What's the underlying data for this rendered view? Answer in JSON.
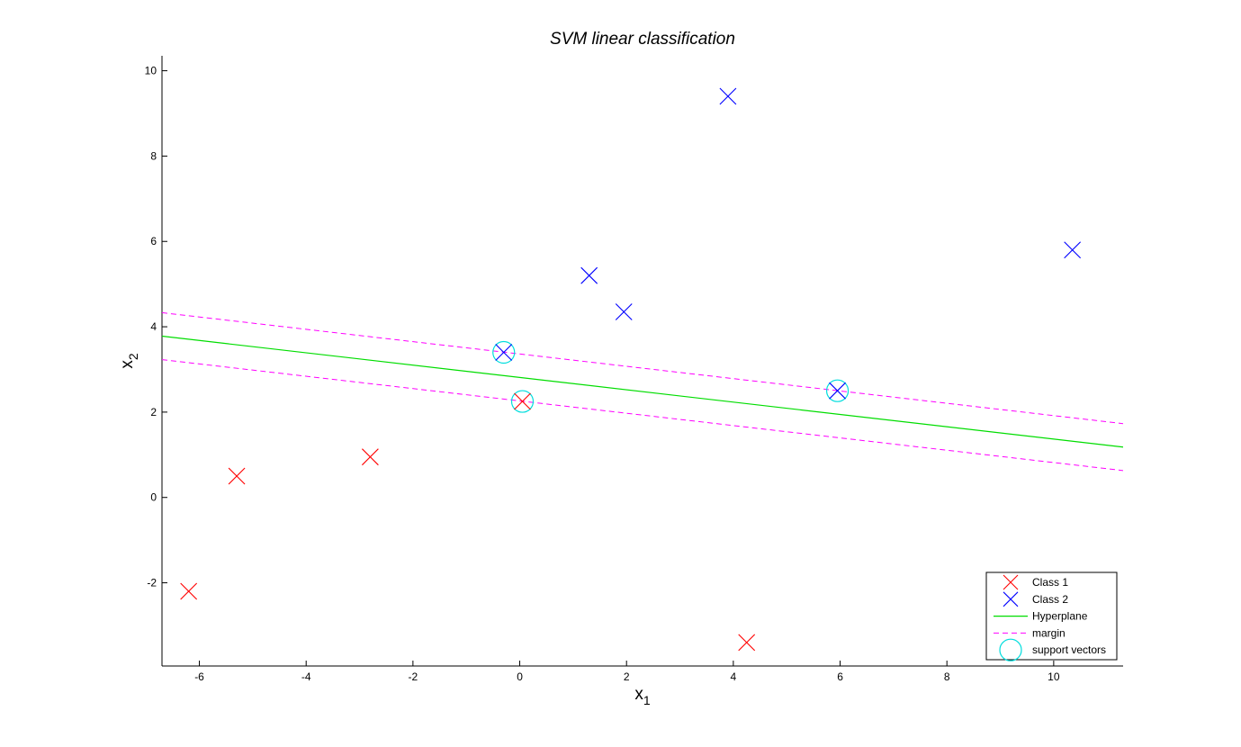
{
  "chart_data": {
    "type": "scatter",
    "title": "SVM linear classification",
    "xlabel": {
      "base": "x",
      "sub": "1"
    },
    "ylabel": {
      "base": "x",
      "sub": "2"
    },
    "xlim": [
      -6.7,
      11.3
    ],
    "ylim": [
      -3.95,
      10.35
    ],
    "xticks": [
      -6,
      -4,
      -2,
      0,
      2,
      4,
      6,
      8,
      10
    ],
    "yticks": [
      -2,
      0,
      2,
      4,
      6,
      8,
      10
    ],
    "grid": false,
    "legend_position": "bottom-right",
    "series": [
      {
        "name": "Class 1",
        "marker": "x",
        "color": "#ff0000",
        "points": [
          [
            -6.2,
            -2.2
          ],
          [
            -5.3,
            0.5
          ],
          [
            -2.8,
            0.95
          ],
          [
            0.05,
            2.25
          ],
          [
            4.25,
            -3.4
          ]
        ]
      },
      {
        "name": "Class 2",
        "marker": "x",
        "color": "#0000ff",
        "points": [
          [
            -0.3,
            3.4
          ],
          [
            1.3,
            5.2
          ],
          [
            1.95,
            4.35
          ],
          [
            3.9,
            9.4
          ],
          [
            5.95,
            2.5
          ],
          [
            10.35,
            5.8
          ]
        ]
      },
      {
        "name": "Hyperplane",
        "marker": "line",
        "color": "#00dd00",
        "points": [
          [
            -6.7,
            3.78
          ],
          [
            11.3,
            1.18
          ]
        ]
      },
      {
        "name": "margin",
        "marker": "dashed-line",
        "color": "#ff00ff",
        "lines": [
          [
            [
              -6.7,
              4.33
            ],
            [
              11.3,
              1.73
            ]
          ],
          [
            [
              -6.7,
              3.23
            ],
            [
              11.3,
              0.63
            ]
          ]
        ]
      },
      {
        "name": "support vectors",
        "marker": "circle",
        "color": "#00dddd",
        "points": [
          [
            -0.3,
            3.4
          ],
          [
            0.05,
            2.25
          ],
          [
            5.95,
            2.5
          ]
        ]
      }
    ]
  }
}
